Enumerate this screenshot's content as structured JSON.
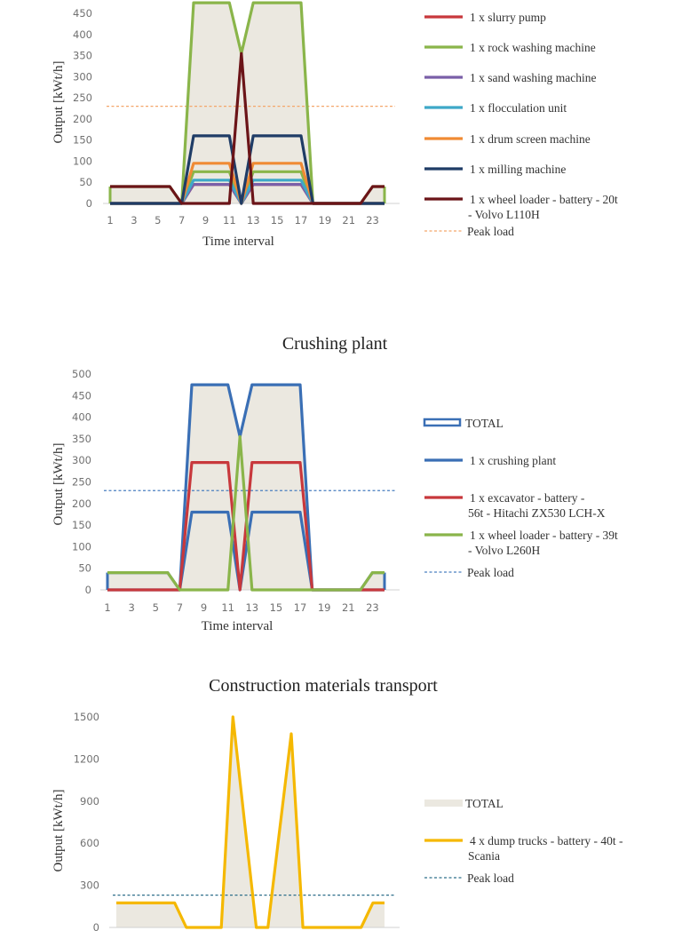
{
  "chart_data": [
    {
      "type": "line",
      "title": "",
      "xlabel": "Time interval",
      "ylabel": "Output [kWt/h]",
      "x": [
        1,
        2,
        3,
        4,
        5,
        6,
        7,
        8,
        9,
        10,
        11,
        12,
        13,
        14,
        15,
        16,
        17,
        18,
        19,
        20,
        21,
        22,
        23,
        24
      ],
      "xticks": [
        1,
        3,
        5,
        7,
        9,
        11,
        13,
        15,
        17,
        19,
        21,
        23
      ],
      "yticks": [
        0,
        50,
        100,
        150,
        200,
        250,
        300,
        350,
        400,
        450
      ],
      "ylim": [
        0,
        475
      ],
      "grid": false,
      "legend_position": "right",
      "peak_load": {
        "name": "Peak load",
        "value": 230,
        "color": "#f4a66a"
      },
      "total": {
        "name": "",
        "color": "#8ab54a",
        "fill": "#ebe8e0",
        "values": [
          40,
          40,
          40,
          40,
          40,
          40,
          0,
          475,
          475,
          475,
          475,
          355,
          475,
          475,
          475,
          475,
          475,
          0,
          0,
          0,
          0,
          0,
          40,
          40
        ]
      },
      "series": [
        {
          "name": "1 x slurry pump",
          "color": "#c8383c",
          "values": [
            0,
            0,
            0,
            0,
            0,
            0,
            0,
            45,
            45,
            45,
            45,
            0,
            45,
            45,
            45,
            45,
            45,
            0,
            0,
            0,
            0,
            0,
            0,
            0
          ]
        },
        {
          "name": "1 x rock washing machine",
          "color": "#8ab54a",
          "values": [
            0,
            0,
            0,
            0,
            0,
            0,
            0,
            75,
            75,
            75,
            75,
            0,
            75,
            75,
            75,
            75,
            75,
            0,
            0,
            0,
            0,
            0,
            0,
            0
          ]
        },
        {
          "name": "1 x sand washing machine",
          "color": "#7a5fa8",
          "values": [
            0,
            0,
            0,
            0,
            0,
            0,
            0,
            45,
            45,
            45,
            45,
            0,
            45,
            45,
            45,
            45,
            45,
            0,
            0,
            0,
            0,
            0,
            0,
            0
          ]
        },
        {
          "name": "1 x flocculation unit",
          "color": "#3ea8c8",
          "values": [
            0,
            0,
            0,
            0,
            0,
            0,
            0,
            55,
            55,
            55,
            55,
            0,
            55,
            55,
            55,
            55,
            55,
            0,
            0,
            0,
            0,
            0,
            0,
            0
          ]
        },
        {
          "name": "1 x drum screen machine",
          "color": "#f08a34",
          "values": [
            0,
            0,
            0,
            0,
            0,
            0,
            0,
            95,
            95,
            95,
            95,
            0,
            95,
            95,
            95,
            95,
            95,
            0,
            0,
            0,
            0,
            0,
            0,
            0
          ]
        },
        {
          "name": "1 x milling machine",
          "color": "#1f3c66",
          "values": [
            0,
            0,
            0,
            0,
            0,
            0,
            0,
            160,
            160,
            160,
            160,
            0,
            160,
            160,
            160,
            160,
            160,
            0,
            0,
            0,
            0,
            0,
            0,
            0
          ]
        },
        {
          "name": "1 x wheel loader - battery - 20t - Volvo L110H",
          "lines": [
            "1 x wheel loader - battery - 20t",
            "- Volvo L110H"
          ],
          "color": "#6b1418",
          "values": [
            40,
            40,
            40,
            40,
            40,
            40,
            0,
            0,
            0,
            0,
            0,
            355,
            0,
            0,
            0,
            0,
            0,
            0,
            0,
            0,
            0,
            0,
            40,
            40
          ]
        }
      ]
    },
    {
      "type": "line",
      "title": "Crushing plant",
      "xlabel": "Time interval",
      "ylabel": "Output [kWt/h]",
      "x": [
        1,
        2,
        3,
        4,
        5,
        6,
        7,
        8,
        9,
        10,
        11,
        12,
        13,
        14,
        15,
        16,
        17,
        18,
        19,
        20,
        21,
        22,
        23,
        24
      ],
      "xticks": [
        1,
        3,
        5,
        7,
        9,
        11,
        13,
        15,
        17,
        19,
        21,
        23
      ],
      "yticks": [
        0,
        50,
        100,
        150,
        200,
        250,
        300,
        350,
        400,
        450,
        500
      ],
      "ylim": [
        0,
        500
      ],
      "grid": false,
      "legend_position": "right",
      "peak_load": {
        "name": "Peak load",
        "value": 230,
        "color": "#4a7fc0"
      },
      "total": {
        "name": "TOTAL",
        "color": "#3a6fb5",
        "fill": "#ebe8e0",
        "values": [
          40,
          40,
          40,
          40,
          40,
          40,
          0,
          475,
          475,
          475,
          475,
          355,
          475,
          475,
          475,
          475,
          475,
          0,
          0,
          0,
          0,
          0,
          40,
          40
        ]
      },
      "series": [
        {
          "name": "1 x crushing plant",
          "color": "#3a6fb5",
          "values": [
            0,
            0,
            0,
            0,
            0,
            0,
            0,
            180,
            180,
            180,
            180,
            0,
            180,
            180,
            180,
            180,
            180,
            0,
            0,
            0,
            0,
            0,
            0,
            0
          ]
        },
        {
          "name": "1 x excavator - battery - 56t - Hitachi ZX530 LCH-X",
          "lines": [
            "1 x excavator - battery -",
            "56t - Hitachi ZX530 LCH-X"
          ],
          "color": "#c8383c",
          "values": [
            0,
            0,
            0,
            0,
            0,
            0,
            0,
            295,
            295,
            295,
            295,
            0,
            295,
            295,
            295,
            295,
            295,
            0,
            0,
            0,
            0,
            0,
            0,
            0
          ]
        },
        {
          "name": "1 x wheel loader - battery - 39t - Volvo L260H",
          "lines": [
            "1 x wheel loader - battery - 39t",
            "- Volvo L260H"
          ],
          "color": "#8ab54a",
          "values": [
            40,
            40,
            40,
            40,
            40,
            40,
            0,
            0,
            0,
            0,
            0,
            355,
            0,
            0,
            0,
            0,
            0,
            0,
            0,
            0,
            0,
            0,
            40,
            40
          ]
        }
      ]
    },
    {
      "type": "area",
      "title": "Construction materials transport",
      "xlabel": "",
      "ylabel": "Output [kWt/h]",
      "x": [
        1,
        2,
        3,
        4,
        5,
        6,
        7,
        8,
        9,
        10,
        11,
        12,
        13,
        14,
        15,
        16,
        17,
        18,
        19,
        20,
        21,
        22,
        23,
        24
      ],
      "xticks": [],
      "yticks": [
        0,
        300,
        600,
        900,
        1200,
        1500
      ],
      "ylim": [
        0,
        1500
      ],
      "grid": false,
      "legend_position": "right",
      "peak_load": {
        "name": "Peak load",
        "value": 230,
        "color": "#2e6f8a"
      },
      "total": {
        "name": "TOTAL",
        "color": null,
        "fill": "#ebe8e0",
        "values": [
          175,
          175,
          175,
          175,
          175,
          175,
          0,
          0,
          0,
          0,
          1500,
          750,
          0,
          0,
          690,
          1380,
          0,
          0,
          0,
          0,
          0,
          0,
          175,
          175
        ]
      },
      "series": [
        {
          "name": "4 x dump trucks - battery - 40t - Scania",
          "lines": [
            "4 x dump trucks - battery - 40t -",
            "Scania"
          ],
          "color": "#f5b800",
          "values": [
            175,
            175,
            175,
            175,
            175,
            175,
            0,
            0,
            0,
            0,
            1500,
            750,
            0,
            0,
            690,
            1380,
            0,
            0,
            0,
            0,
            0,
            0,
            175,
            175
          ]
        }
      ]
    }
  ]
}
